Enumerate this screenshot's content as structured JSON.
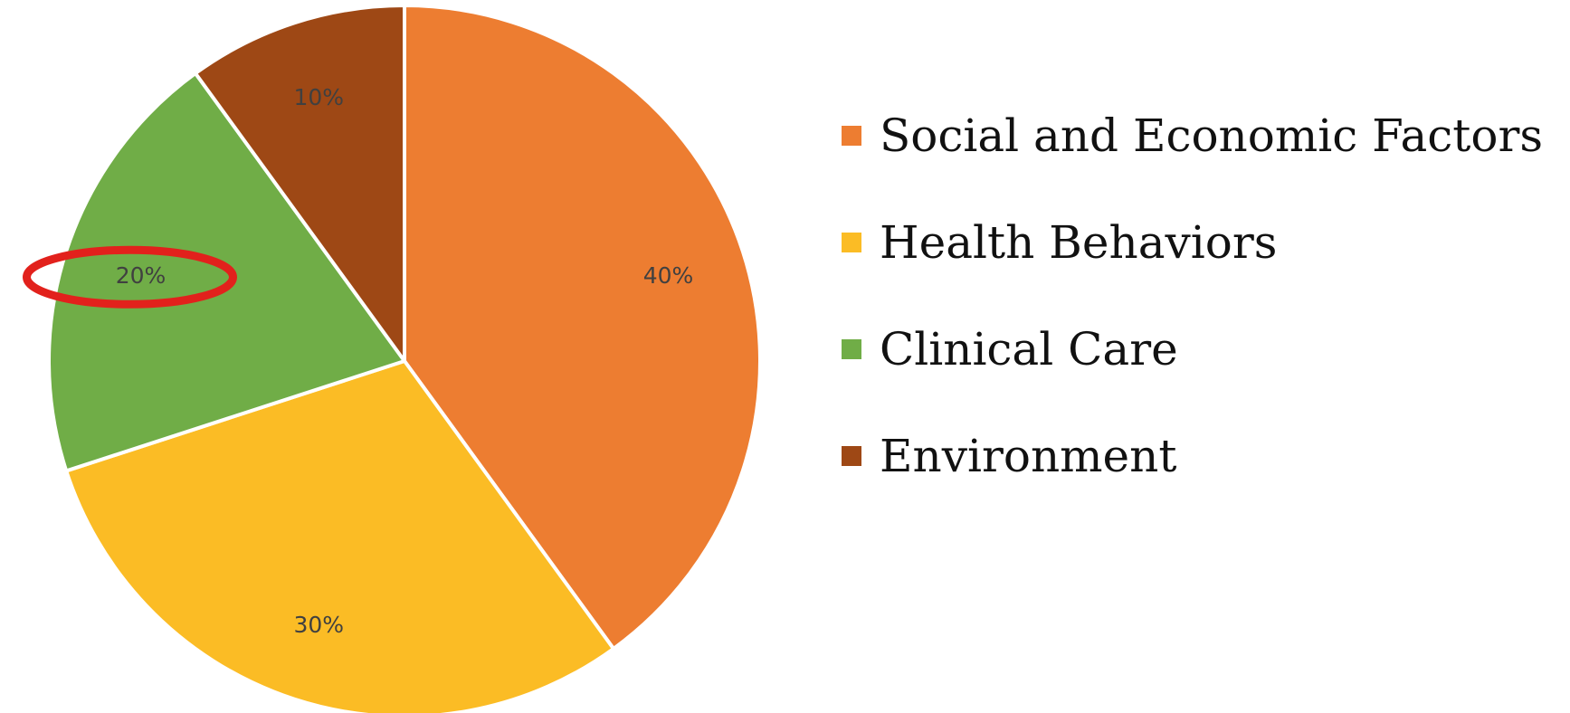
{
  "chart_data": {
    "type": "pie",
    "title": "",
    "start_angle_deg": 0,
    "direction": "clockwise",
    "legend_position": "right",
    "slices": [
      {
        "label": "Social and Economic Factors",
        "value": 40,
        "value_label": "40%",
        "color": "#ed7d31"
      },
      {
        "label": "Health Behaviors",
        "value": 30,
        "value_label": "30%",
        "color": "#fbbc25"
      },
      {
        "label": "Clinical Care",
        "value": 20,
        "value_label": "20%",
        "color": "#70ad47"
      },
      {
        "label": "Environment",
        "value": 10,
        "value_label": "10%",
        "color": "#9e4815"
      }
    ],
    "annotation": {
      "type": "ellipse",
      "target": "Clinical Care",
      "color": "#e2211c"
    }
  }
}
